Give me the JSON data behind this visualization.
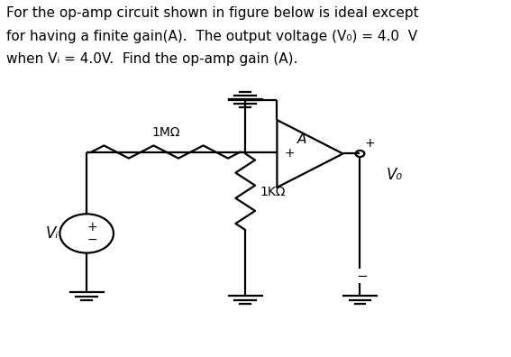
{
  "bg_color": "#ffffff",
  "line_color": "#000000",
  "lw": 1.6,
  "fig_width": 5.67,
  "fig_height": 3.96,
  "text_line1": "For the op-amp circuit shown in figure below is ideal except",
  "text_line2": "for having a finite gain(A).  The output voltage (V₀) = 4.0  V",
  "text_line3": "when Vᵢ = 4.0V.  Find the op-amp gain (A).",
  "label_1mohm": "1MΩ",
  "label_1kohm": "1KΩ",
  "label_A": "A",
  "label_Vi": "Vᵢ",
  "label_Vo": "V₀",
  "label_plus": "+",
  "label_minus": "−"
}
